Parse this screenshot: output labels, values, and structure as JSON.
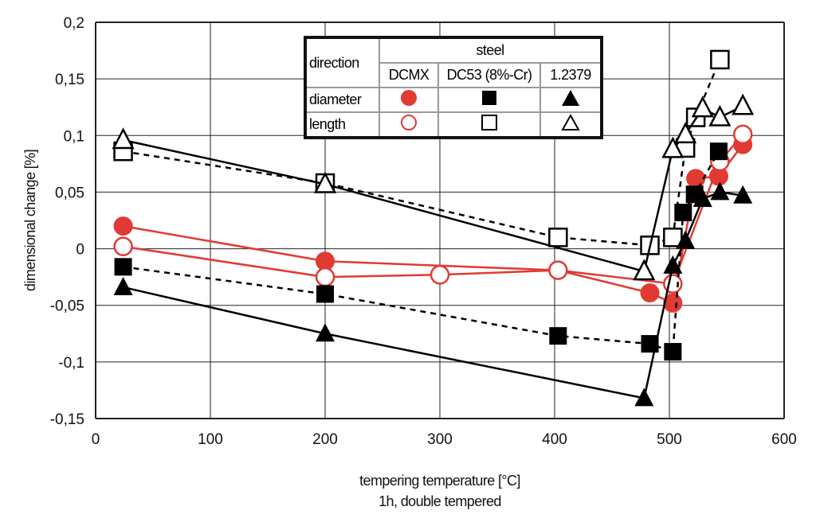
{
  "chart_data": {
    "type": "scatter",
    "xlabel": "tempering temperature [°C]",
    "xlabel2": "1h, double tempered",
    "ylabel": "dimensional change [%]",
    "xlim": [
      0,
      600
    ],
    "ylim": [
      -0.15,
      0.2
    ],
    "xticks": [
      "0",
      "100",
      "200",
      "300",
      "400",
      "500",
      "600"
    ],
    "yticks": [
      "-0,15",
      "-0,1",
      "-0,05",
      "0",
      "0,05",
      "0,1",
      "0,15",
      "0,2"
    ],
    "grid": true,
    "legend": {
      "header_direction": "direction",
      "header_steel": "steel",
      "steels": [
        "DCMX",
        "DC53 (8%-Cr)",
        "1.2379"
      ],
      "rows": [
        "diameter",
        "length"
      ],
      "placement": "top-center"
    },
    "series": [
      {
        "steel": "DCMX",
        "direction": "diameter",
        "marker": "circle-filled",
        "line": "solid",
        "color": "#e03a33",
        "x": [
          24,
          200,
          403,
          483,
          503,
          523,
          543,
          564
        ],
        "y": [
          0.02,
          -0.011,
          -0.019,
          -0.039,
          -0.048,
          0.062,
          0.064,
          0.092
        ]
      },
      {
        "steel": "DCMX",
        "direction": "length",
        "marker": "circle-open",
        "line": "solid",
        "color": "#e03a33",
        "x": [
          24,
          200,
          300,
          403,
          503,
          544,
          564
        ],
        "y": [
          0.002,
          -0.025,
          -0.023,
          -0.019,
          -0.031,
          0.077,
          0.101
        ]
      },
      {
        "steel": "DC53 (8%-Cr)",
        "direction": "diameter",
        "marker": "square-filled",
        "line": "dashed",
        "color": "#000000",
        "x": [
          24,
          200,
          403,
          483,
          503,
          512,
          522,
          543
        ],
        "y": [
          -0.016,
          -0.04,
          -0.077,
          -0.084,
          -0.091,
          0.032,
          0.048,
          0.086
        ]
      },
      {
        "steel": "DC53 (8%-Cr)",
        "direction": "length",
        "marker": "square-open",
        "line": "dashed",
        "color": "#000000",
        "x": [
          24,
          200,
          403,
          483,
          503,
          514,
          523,
          544
        ],
        "y": [
          0.086,
          0.058,
          0.01,
          0.003,
          0.01,
          0.089,
          0.116,
          0.167
        ]
      },
      {
        "steel": "1.2379",
        "direction": "diameter",
        "marker": "triangle-filled",
        "line": "solid",
        "color": "#000000",
        "x": [
          24,
          200,
          478,
          503,
          514,
          529,
          544,
          564
        ],
        "y": [
          -0.034,
          -0.075,
          -0.132,
          -0.015,
          0.007,
          0.044,
          0.05,
          0.047
        ]
      },
      {
        "steel": "1.2379",
        "direction": "length",
        "marker": "triangle-open",
        "line": "solid",
        "color": "#000000",
        "x": [
          24,
          200,
          478,
          503,
          514,
          529,
          544,
          564
        ],
        "y": [
          0.096,
          0.057,
          -0.02,
          0.088,
          0.101,
          0.124,
          0.116,
          0.126
        ]
      }
    ]
  }
}
